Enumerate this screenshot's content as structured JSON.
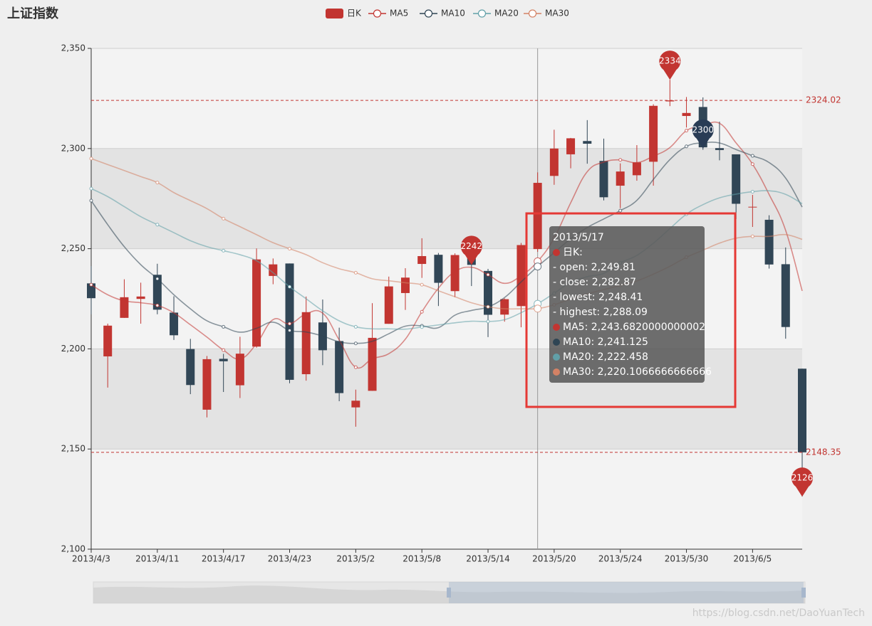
{
  "chart_data": {
    "type": "candlestick",
    "title": "上证指数",
    "categories": [
      "2013/4/3",
      null,
      null,
      null,
      "2013/4/11",
      null,
      null,
      null,
      "2013/4/17",
      null,
      null,
      null,
      "2013/4/23",
      null,
      null,
      null,
      "2013/5/2",
      null,
      null,
      null,
      "2013/5/8",
      null,
      null,
      null,
      "2013/5/14",
      null,
      null,
      null,
      "2013/5/20",
      null,
      null,
      null,
      "2013/5/24",
      null,
      null,
      null,
      "2013/5/30",
      null,
      null,
      null,
      "2013/6/5",
      null,
      null,
      null
    ],
    "series": [
      {
        "name": "日K",
        "type": "candlestick",
        "color": "#c23531",
        "down_color": "#314656",
        "open": [
          2232.69,
          2196.24,
          2215.47,
          2224.93,
          2236.98,
          2218.09,
          2199.91,
          2169.63,
          2195.03,
          2181.82,
          2201.12,
          2236.4,
          2242.62,
          2187.35,
          2213.19,
          2203.89,
          2170.78,
          2179.05,
          2212.5,
          2227.86,
          2242.39,
          2246.96,
          2228.82,
          2247.68,
          2238.9,
          2217.09,
          2221.34,
          2249.81,
          2286.33,
          2297.11,
          2303.75,
          2293.81,
          2281.45,
          2286.66,
          2293.4,
          2323.54,
          2316.25,
          2320.74,
          2300.21,
          2297.1,
          2270.71,
          2264.43,
          2242.26,
          2190.1
        ],
        "close": [
          2225.29,
          2211.59,
          2225.77,
          2226.13,
          2219.55,
          2206.78,
          2181.94,
          2194.85,
          2193.8,
          2197.6,
          2244.64,
          2242.17,
          2184.54,
          2218.32,
          2199.31,
          2177.91,
          2174.12,
          2205.5,
          2231.17,
          2235.57,
          2246.3,
          2232.97,
          2246.83,
          2241.92,
          2217.01,
          2224.8,
          2251.81,
          2282.87,
          2299.99,
          2305.11,
          2302.4,
          2275.67,
          2288.53,
          2293.08,
          2321.32,
          2324.02,
          2317.75,
          2300.59,
          2299.25,
          2272.42,
          2270.93,
          2242.11,
          2210.9,
          2148.35
        ],
        "low": [
          2217.25,
          2180.67,
          2215.47,
          2212.56,
          2217.26,
          2204.44,
          2177.39,
          2165.78,
          2178.47,
          2175.44,
          2200.58,
          2232.26,
          2182.81,
          2184.11,
          2191.85,
          2173.86,
          2161.14,
          2179.05,
          2212.5,
          2219.44,
          2235.42,
          2221.38,
          2225.81,
          2231.36,
          2205.87,
          2213.58,
          2210.77,
          2248.41,
          2281.9,
          2290.12,
          2292.43,
          2274.1,
          2270.25,
          2283.94,
          2281.47,
          2321.17,
          2310.49,
          2299.37,
          2294.11,
          2264.76,
          2260.87,
          2240.07,
          2205.07,
          2126.22
        ],
        "high": [
          2241.34,
          2212.59,
          2234.73,
          2233.04,
          2242.48,
          2226.26,
          2204.99,
          2196.43,
          2197.51,
          2206.03,
          2250.11,
          2245.12,
          2242.62,
          2226.12,
          2224.63,
          2210.58,
          2179.65,
          2222.81,
          2236.07,
          2240.26,
          2255.21,
          2247.86,
          2247.67,
          2250.85,
          2239.93,
          2225.19,
          2252.87,
          2288.09,
          2309.39,
          2305.3,
          2314.18,
          2304.95,
          2292.59,
          2301.7,
          2322.1,
          2334.33,
          2325.72,
          2325.53,
          2313.43,
          2297.1,
          2276.86,
          2266.69,
          2250.63,
          2190.1
        ]
      },
      {
        "name": "MA5",
        "type": "line",
        "color": "#c23531",
        "values": [
          2232,
          2227,
          2224,
          2223,
          2221.67,
          2217.96,
          2212.03,
          2205.85,
          2199.38,
          2194.99,
          2202.57,
          2214.61,
          2212.55,
          2217.45,
          2217.8,
          2204.45,
          2190.84,
          2195.03,
          2197.6,
          2204.85,
          2218.53,
          2230.3,
          2238.57,
          2240.72,
          2237.01,
          2232.71,
          2236.47,
          2243.68,
          2255.3,
          2272.92,
          2288.44,
          2293.21,
          2294.34,
          2292.96,
          2296.2,
          2300.52,
          2308.94,
          2311.35,
          2312.59,
          2302.81,
          2292.19,
          2277.06,
          2259.12,
          2228.94
        ]
      },
      {
        "name": "MA10",
        "type": "line",
        "color": "#2f4554",
        "values": [
          2274,
          2262,
          2251,
          2242,
          2235,
          2227,
          2220,
          2214,
          2211,
          2208.33,
          2210.27,
          2213.32,
          2209.2,
          2208.42,
          2206.4,
          2203.51,
          2202.73,
          2203.79,
          2207.53,
          2211.33,
          2211.49,
          2210.57,
          2216.8,
          2219.16,
          2220.93,
          2225.62,
          2233.39,
          2241.13,
          2248.01,
          2254.96,
          2260.57,
          2264.84,
          2269.01,
          2274.13,
          2284.56,
          2294.48,
          2301.07,
          2302.85,
          2302.77,
          2299.5,
          2296.36,
          2293,
          2285.24,
          2270.76
        ]
      },
      {
        "name": "MA20",
        "type": "line",
        "color": "#61a0a8",
        "values": [
          2280,
          2276,
          2271,
          2266,
          2262,
          2258,
          2254,
          2251,
          2249,
          2247,
          2244,
          2238,
          2231,
          2225,
          2219,
          2214,
          2211,
          2210,
          2210,
          2209.83,
          2210.88,
          2211.95,
          2213,
          2213.79,
          2213.66,
          2214.56,
          2218.06,
          2222.46,
          2227.77,
          2233.14,
          2236.03,
          2237.71,
          2242.91,
          2246.64,
          2252.74,
          2260.05,
          2267.23,
          2271.99,
          2275.39,
          2277.23,
          2278.46,
          2278.92,
          2277.12,
          2272.45
        ]
      },
      {
        "name": "MA30",
        "type": "line",
        "color": "#d48265",
        "values": [
          2295,
          2292,
          2289,
          2286,
          2283,
          2278,
          2274,
          2270,
          2265,
          2261,
          2257,
          2253,
          2250,
          2247,
          2243,
          2240,
          2238,
          2235,
          2234,
          2233,
          2232,
          2229,
          2226,
          2223,
          2221,
          2220,
          2220,
          2220.1066666666666,
          2222,
          2224.87,
          2227.44,
          2229.58,
          2231.67,
          2233.9,
          2237.29,
          2241.2,
          2245.73,
          2249.25,
          2252.77,
          2255.26,
          2256.14,
          2256.14,
          2257.02,
          2254.68
        ]
      }
    ],
    "ylim": [
      2100,
      2350
    ],
    "yticks": [
      {
        "value": 2100,
        "label": "2,100"
      },
      {
        "value": 2150,
        "label": "2,150"
      },
      {
        "value": 2200,
        "label": "2,200"
      },
      {
        "value": 2250,
        "label": "2,250"
      },
      {
        "value": 2300,
        "label": "2,300"
      },
      {
        "value": 2350,
        "label": "2,350"
      }
    ],
    "grid": true,
    "split_area": true,
    "legend": "top",
    "mark_lines": [
      2324.02,
      2148.35
    ],
    "mark_points": [
      {
        "at": 23,
        "value": 2241.92,
        "label": "2242",
        "color": "#c23531"
      },
      {
        "at": 35,
        "value": 2334.33,
        "label": "2334",
        "color": "#c23531"
      },
      {
        "at": 37,
        "value": 2300,
        "label": "2300",
        "color": "#293c55"
      },
      {
        "at": 43,
        "value": 2126.22,
        "label": "2126",
        "color": "#c23531"
      }
    ],
    "tooltip": {
      "pointer_index": 27,
      "title": "2013/5/17",
      "lines": [
        {
          "text": "日K:",
          "series": 0
        },
        {
          "text": "- open: 2,249.81"
        },
        {
          "text": "- close: 2,282.87"
        },
        {
          "text": "- lowest: 2,248.41"
        },
        {
          "text": "- highest: 2,288.09"
        },
        {
          "text": "MA5: 2,243.6820000000002",
          "series": 1
        },
        {
          "text": "MA10: 2,241.125",
          "series": 2
        },
        {
          "text": "MA20: 2,222.458",
          "series": 3
        },
        {
          "text": "MA30: 2,220.1066666666666",
          "series": 4
        }
      ]
    },
    "watermark": "https://blog.csdn.net/DaoYuanTech"
  }
}
